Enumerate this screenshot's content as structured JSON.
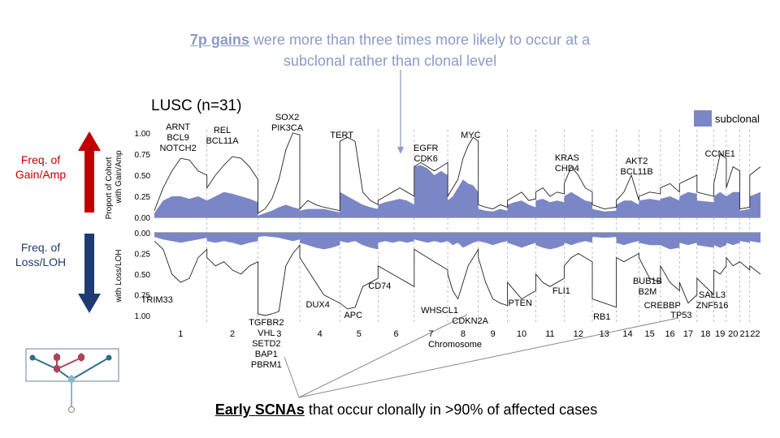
{
  "annotation_top": {
    "emphasis": "7p gains",
    "line1_rest": " were more than three times more likely to occur at a",
    "line2": "subclonal rather than clonal level"
  },
  "annotation_bottom": {
    "emphasis": "Early SCNAs",
    "rest": " that occur clonally in >90% of affected cases"
  },
  "side_labels": {
    "gain": [
      "Freq. of",
      "Gain/Amp"
    ],
    "loss": [
      "Freq. of",
      "Loss/LOH"
    ]
  },
  "colors": {
    "subclonal": "#7b86c6",
    "gain_arrow": "#c00000",
    "loss_arrow": "#1f3b73",
    "annotation": "#8a9bc6",
    "tree_blue": "#2c6d8a",
    "tree_red": "#b0435a"
  },
  "chart_data": {
    "type": "area",
    "title": "LUSC  (n=31)",
    "legend": {
      "label": "subclonal",
      "position": "top-right"
    },
    "ylabel_top": [
      "Proport of Cohort",
      "with Gain/Amp"
    ],
    "ylabel_bottom": "with Loss/LOH",
    "xlabel": "Chromosome",
    "gain_ticks": [
      "0.00",
      "0.25",
      "0.50",
      "0.75",
      "1.00"
    ],
    "loss_ticks": [
      "0.00",
      "0.25",
      "0.50",
      "0.75",
      "1.00"
    ],
    "ylim": [
      0,
      1
    ],
    "chromosomes": [
      "1",
      "2",
      "3",
      "4",
      "5",
      "6",
      "7",
      "8",
      "9",
      "10",
      "11",
      "12",
      "13",
      "14",
      "15",
      "16",
      "17",
      "18",
      "19",
      "20",
      "21",
      "22"
    ],
    "chrom_sizes": [
      249,
      242,
      198,
      190,
      181,
      171,
      159,
      145,
      138,
      134,
      135,
      133,
      114,
      107,
      102,
      90,
      83,
      80,
      59,
      64,
      47,
      51
    ],
    "gain_total": [
      [
        0.08,
        0.35,
        0.55,
        0.7,
        0.68,
        0.55,
        0.5
      ],
      [
        0.35,
        0.5,
        0.62,
        0.72,
        0.7,
        0.6,
        0.45
      ],
      [
        0.05,
        0.1,
        0.22,
        0.45,
        0.8,
        1.0,
        0.98
      ],
      [
        0.1,
        0.2,
        0.15,
        0.12,
        0.1,
        0.08
      ],
      [
        0.9,
        0.95,
        0.9,
        0.3,
        0.2,
        0.15
      ],
      [
        0.2,
        0.25,
        0.3,
        0.35,
        0.3,
        0.25
      ],
      [
        0.6,
        0.65,
        0.6,
        0.55,
        0.6,
        0.65
      ],
      [
        0.25,
        0.35,
        0.45,
        0.7,
        0.85,
        0.95,
        0.9
      ],
      [
        0.15,
        0.12,
        0.1,
        0.15,
        0.12
      ],
      [
        0.2,
        0.25,
        0.3,
        0.2,
        0.22
      ],
      [
        0.3,
        0.35,
        0.25,
        0.3,
        0.28
      ],
      [
        0.4,
        0.6,
        0.5,
        0.35,
        0.3
      ],
      [
        0.15,
        0.1,
        0.12
      ],
      [
        0.2,
        0.3,
        0.5,
        0.2
      ],
      [
        0.25,
        0.3,
        0.28
      ],
      [
        0.35,
        0.4,
        0.3
      ],
      [
        0.4,
        0.45,
        0.5
      ],
      [
        0.3,
        0.25
      ],
      [
        0.4,
        0.75,
        0.7
      ],
      [
        0.35,
        0.6,
        0.55
      ],
      [
        0.1,
        0.12
      ],
      [
        0.5,
        0.6
      ]
    ],
    "gain_subclonal": [
      [
        0.05,
        0.2,
        0.25,
        0.25,
        0.22,
        0.25,
        0.2
      ],
      [
        0.2,
        0.25,
        0.3,
        0.28,
        0.25,
        0.22,
        0.18
      ],
      [
        0.02,
        0.05,
        0.08,
        0.12,
        0.15,
        0.12,
        0.1
      ],
      [
        0.08,
        0.1,
        0.1,
        0.1,
        0.08,
        0.06
      ],
      [
        0.3,
        0.25,
        0.2,
        0.15,
        0.12,
        0.1
      ],
      [
        0.15,
        0.18,
        0.2,
        0.22,
        0.2,
        0.15
      ],
      [
        0.6,
        0.62,
        0.58,
        0.5,
        0.55,
        0.5
      ],
      [
        0.2,
        0.25,
        0.35,
        0.45,
        0.4,
        0.38,
        0.3
      ],
      [
        0.1,
        0.08,
        0.07,
        0.1,
        0.08
      ],
      [
        0.15,
        0.18,
        0.2,
        0.15,
        0.12
      ],
      [
        0.2,
        0.22,
        0.18,
        0.2,
        0.18
      ],
      [
        0.25,
        0.3,
        0.25,
        0.2,
        0.18
      ],
      [
        0.1,
        0.07,
        0.08
      ],
      [
        0.15,
        0.2,
        0.2,
        0.15
      ],
      [
        0.2,
        0.22,
        0.2
      ],
      [
        0.22,
        0.25,
        0.2
      ],
      [
        0.25,
        0.3,
        0.28
      ],
      [
        0.2,
        0.18
      ],
      [
        0.25,
        0.3,
        0.25
      ],
      [
        0.25,
        0.3,
        0.3
      ],
      [
        0.08,
        0.1
      ],
      [
        0.25,
        0.3
      ]
    ],
    "loss_total": [
      [
        0.1,
        0.2,
        0.5,
        0.6,
        0.55,
        0.3,
        0.2
      ],
      [
        0.3,
        0.4,
        0.35,
        0.45,
        0.5,
        0.4,
        0.35
      ],
      [
        0.98,
        1.0,
        0.98,
        0.95,
        0.4,
        0.25,
        0.15
      ],
      [
        0.3,
        0.45,
        0.6,
        0.75,
        0.8,
        0.85
      ],
      [
        0.85,
        0.92,
        0.9,
        0.65,
        0.6,
        0.55
      ],
      [
        0.4,
        0.45,
        0.5,
        0.55,
        0.6,
        0.65
      ],
      [
        0.2,
        0.25,
        0.3,
        0.35,
        0.4,
        0.45
      ],
      [
        0.5,
        0.7,
        0.8,
        0.6,
        0.4,
        0.3,
        0.2
      ],
      [
        0.3,
        0.6,
        0.8,
        0.85,
        0.88
      ],
      [
        0.6,
        0.7,
        0.8,
        0.75,
        0.7
      ],
      [
        0.5,
        0.6,
        0.65,
        0.6,
        0.55
      ],
      [
        0.4,
        0.3,
        0.25,
        0.3,
        0.35
      ],
      [
        0.8,
        0.85,
        0.9
      ],
      [
        0.3,
        0.35,
        0.3,
        0.25
      ],
      [
        0.3,
        0.55,
        0.6
      ],
      [
        0.4,
        0.6,
        0.7
      ],
      [
        0.6,
        0.85,
        0.75
      ],
      [
        0.55,
        0.75
      ],
      [
        0.45,
        0.5,
        0.4
      ],
      [
        0.3,
        0.4,
        0.35
      ],
      [
        0.35,
        0.45
      ],
      [
        0.4,
        0.5
      ]
    ],
    "loss_subclonal": [
      [
        0.05,
        0.08,
        0.1,
        0.12,
        0.1,
        0.08,
        0.06
      ],
      [
        0.1,
        0.12,
        0.1,
        0.12,
        0.15,
        0.12,
        0.1
      ],
      [
        0.05,
        0.04,
        0.05,
        0.06,
        0.08,
        0.1,
        0.08
      ],
      [
        0.12,
        0.15,
        0.18,
        0.2,
        0.18,
        0.15
      ],
      [
        0.1,
        0.12,
        0.1,
        0.15,
        0.18,
        0.2
      ],
      [
        0.12,
        0.1,
        0.12,
        0.1,
        0.12,
        0.1
      ],
      [
        0.08,
        0.1,
        0.12,
        0.1,
        0.12,
        0.1
      ],
      [
        0.1,
        0.15,
        0.12,
        0.18,
        0.15,
        0.12,
        0.1
      ],
      [
        0.1,
        0.12,
        0.15,
        0.12,
        0.1
      ],
      [
        0.12,
        0.15,
        0.18,
        0.15,
        0.12
      ],
      [
        0.15,
        0.18,
        0.2,
        0.18,
        0.15
      ],
      [
        0.12,
        0.15,
        0.12,
        0.1,
        0.12
      ],
      [
        0.05,
        0.06,
        0.05
      ],
      [
        0.12,
        0.15,
        0.12,
        0.1
      ],
      [
        0.12,
        0.15,
        0.15
      ],
      [
        0.15,
        0.2,
        0.18
      ],
      [
        0.12,
        0.15,
        0.12
      ],
      [
        0.15,
        0.18
      ],
      [
        0.15,
        0.18,
        0.15
      ],
      [
        0.12,
        0.15,
        0.12
      ],
      [
        0.1,
        0.12
      ],
      [
        0.1,
        0.12
      ]
    ],
    "gain_genes": [
      {
        "lines": [
          "ARNT",
          "BCL9",
          "NOTCH2"
        ],
        "chrom": 1,
        "pos": 0.45
      },
      {
        "lines": [
          "REL",
          "BCL11A"
        ],
        "chrom": 2,
        "pos": 0.3
      },
      {
        "lines": [
          "SOX2",
          "PIK3CA"
        ],
        "chrom": 3,
        "pos": 0.7
      },
      {
        "lines": [
          "TERT"
        ],
        "chrom": 5,
        "pos": 0.05
      },
      {
        "lines": [
          "EGFR",
          "CDK6"
        ],
        "chrom": 7,
        "pos": 0.35
      },
      {
        "lines": [
          "MYC"
        ],
        "chrom": 8,
        "pos": 0.75
      },
      {
        "lines": [
          "KRAS",
          "CHD4"
        ],
        "chrom": 12,
        "pos": 0.1
      },
      {
        "lines": [
          "AKT2",
          "BCL11B"
        ],
        "chrom": 14,
        "pos": 0.9
      },
      {
        "lines": [
          "CCNE1"
        ],
        "chrom": 19,
        "pos": 0.5
      }
    ],
    "loss_genes": [
      {
        "lines": [
          "TRIM33"
        ],
        "chrom": 1,
        "pos": 0.2
      },
      {
        "lines": [
          "TGFBR2",
          "VHL",
          "SETD2",
          "BAP1",
          "PBRM1"
        ],
        "chrom": 3,
        "pos": 0.2
      },
      {
        "lines": [
          "DUX4"
        ],
        "chrom": 4,
        "pos": 0.95
      },
      {
        "lines": [
          "APC"
        ],
        "chrom": 5,
        "pos": 0.5
      },
      {
        "lines": [
          "CD74"
        ],
        "chrom": 5,
        "pos": 0.85
      },
      {
        "lines": [
          "WHSCL1"
        ],
        "chrom": 4,
        "pos": 0.02
      },
      {
        "lines": [
          "CDKN2A"
        ],
        "chrom": 9,
        "pos": 0.15
      },
      {
        "lines": [
          "PTEN"
        ],
        "chrom": 10,
        "pos": 0.45
      },
      {
        "lines": [
          "FLI1"
        ],
        "chrom": 11,
        "pos": 0.9
      },
      {
        "lines": [
          "RB1"
        ],
        "chrom": 13,
        "pos": 0.4
      },
      {
        "lines": [
          "BUB1B",
          "B2M"
        ],
        "chrom": 15,
        "pos": 0.4
      },
      {
        "lines": [
          "CREBBP"
        ],
        "chrom": 16,
        "pos": 0.1
      },
      {
        "lines": [
          "TP53"
        ],
        "chrom": 17,
        "pos": 0.1
      },
      {
        "lines": [
          "SALL3",
          "ZNF516"
        ],
        "chrom": 18,
        "pos": 0.9
      }
    ]
  }
}
